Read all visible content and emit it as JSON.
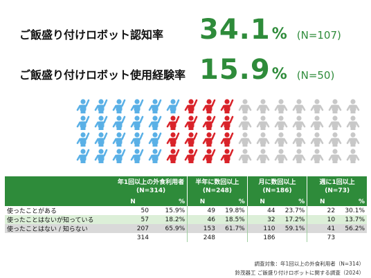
{
  "stats": {
    "awareness": {
      "label": "ご飯盛り付けロボット認知率",
      "value": "34.1",
      "unit": "%",
      "n": "(N=107)"
    },
    "usage": {
      "label": "ご飯盛り付けロボット使用経験率",
      "value": "15.9",
      "unit": "%",
      "n": "(N=50)"
    }
  },
  "figure": {
    "columns": 16,
    "rows": 4,
    "blue_count": 21,
    "red_count": 15,
    "colors": {
      "blue": "#5ab0e6",
      "red": "#d9232a",
      "gray": "#c8c8c8"
    }
  },
  "table": {
    "groups": [
      {
        "line1": "年1回以上の外食利用者",
        "line2": "(N=314)"
      },
      {
        "line1": "半年に数回以上",
        "line2": "(N=248)"
      },
      {
        "line1": "月に数回以上",
        "line2": "(N=186)"
      },
      {
        "line1": "週に1回以上",
        "line2": "(N=73)"
      }
    ],
    "sub_n": "N",
    "sub_pct": "%",
    "rows": [
      {
        "label": "使ったことがある",
        "cells": [
          [
            "50",
            "15.9%"
          ],
          [
            "49",
            "19.8%"
          ],
          [
            "44",
            "23.7%"
          ],
          [
            "22",
            "30.1%"
          ]
        ]
      },
      {
        "label": "使ったことはないが知っている",
        "cells": [
          [
            "57",
            "18.2%"
          ],
          [
            "46",
            "18.5%"
          ],
          [
            "32",
            "17.2%"
          ],
          [
            "10",
            "13.7%"
          ]
        ]
      },
      {
        "label": "使ったことはない / 知らない",
        "cells": [
          [
            "207",
            "65.9%"
          ],
          [
            "153",
            "61.7%"
          ],
          [
            "110",
            "59.1%"
          ],
          [
            "41",
            "56.2%"
          ]
        ]
      }
    ],
    "totals": [
      "314",
      "248",
      "186",
      "73"
    ]
  },
  "footer": {
    "line1": "調査対象：年1回以上の外食利用者（N=314）",
    "line2": "鈴茂器工 ご飯盛り付けロボットに関する調査（2024）"
  }
}
